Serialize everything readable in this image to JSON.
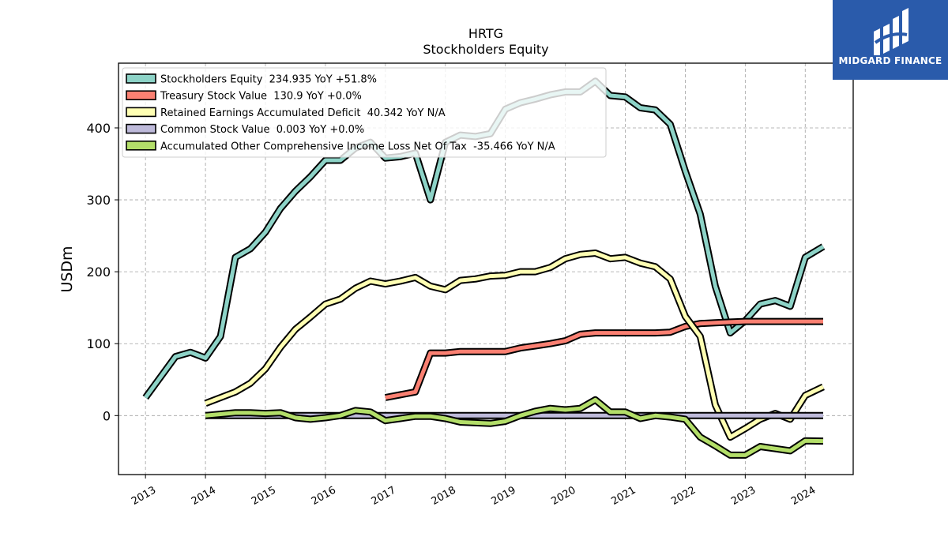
{
  "chart_data": {
    "type": "line",
    "title": "HRTG",
    "subtitle": "Stockholders  Equity",
    "ylabel": "USDm",
    "xlabel": "",
    "xlim": [
      2012.55,
      2024.8
    ],
    "ylim": [
      -82,
      490
    ],
    "yticks": [
      0,
      100,
      200,
      300,
      400
    ],
    "xticks": [
      2013,
      2014,
      2015,
      2016,
      2017,
      2018,
      2019,
      2020,
      2021,
      2022,
      2023,
      2024
    ],
    "grid": true,
    "legend_position": "top-left",
    "series": [
      {
        "name": "Stockholders Equity  234.935 YoY +51.8%",
        "color": "#8dd3c7",
        "points": [
          [
            2013.0,
            25
          ],
          [
            2013.5,
            82
          ],
          [
            2013.75,
            88
          ],
          [
            2014.0,
            80
          ],
          [
            2014.25,
            110
          ],
          [
            2014.5,
            220
          ],
          [
            2014.75,
            232
          ],
          [
            2015.0,
            255
          ],
          [
            2015.25,
            288
          ],
          [
            2015.5,
            312
          ],
          [
            2015.75,
            332
          ],
          [
            2016.0,
            355
          ],
          [
            2016.25,
            355
          ],
          [
            2016.5,
            372
          ],
          [
            2016.75,
            380
          ],
          [
            2017.0,
            358
          ],
          [
            2017.25,
            360
          ],
          [
            2017.5,
            365
          ],
          [
            2017.75,
            300
          ],
          [
            2018.0,
            380
          ],
          [
            2018.25,
            390
          ],
          [
            2018.5,
            388
          ],
          [
            2018.75,
            392
          ],
          [
            2019.0,
            426
          ],
          [
            2019.25,
            435
          ],
          [
            2019.5,
            440
          ],
          [
            2019.75,
            446
          ],
          [
            2020.0,
            450
          ],
          [
            2020.25,
            450
          ],
          [
            2020.5,
            465
          ],
          [
            2020.75,
            445
          ],
          [
            2021.0,
            443
          ],
          [
            2021.25,
            428
          ],
          [
            2021.5,
            425
          ],
          [
            2021.75,
            405
          ],
          [
            2022.0,
            340
          ],
          [
            2022.25,
            280
          ],
          [
            2022.5,
            180
          ],
          [
            2022.75,
            115
          ],
          [
            2023.0,
            132
          ],
          [
            2023.25,
            155
          ],
          [
            2023.5,
            160
          ],
          [
            2023.75,
            152
          ],
          [
            2024.0,
            220
          ],
          [
            2024.3,
            235
          ]
        ]
      },
      {
        "name": "Treasury Stock Value  130.9 YoY +0.0%",
        "color": "#fb8072",
        "points": [
          [
            2017.0,
            25
          ],
          [
            2017.5,
            33
          ],
          [
            2017.75,
            87
          ],
          [
            2018.0,
            87
          ],
          [
            2018.25,
            89
          ],
          [
            2018.5,
            89
          ],
          [
            2018.75,
            89
          ],
          [
            2019.0,
            89
          ],
          [
            2019.25,
            94
          ],
          [
            2019.5,
            97
          ],
          [
            2019.75,
            100
          ],
          [
            2020.0,
            104
          ],
          [
            2020.25,
            113
          ],
          [
            2020.5,
            115
          ],
          [
            2020.75,
            115
          ],
          [
            2021.0,
            115
          ],
          [
            2021.25,
            115
          ],
          [
            2021.5,
            115
          ],
          [
            2021.75,
            116
          ],
          [
            2022.0,
            124
          ],
          [
            2022.25,
            128
          ],
          [
            2022.5,
            129
          ],
          [
            2022.75,
            130
          ],
          [
            2023.0,
            130.9
          ],
          [
            2023.5,
            130.9
          ],
          [
            2024.0,
            130.9
          ],
          [
            2024.3,
            130.9
          ]
        ]
      },
      {
        "name": "Retained Earnings Accumulated Deficit  40.342 YoY N/A",
        "color": "#ffffb3",
        "points": [
          [
            2014.0,
            17
          ],
          [
            2014.5,
            33
          ],
          [
            2014.75,
            45
          ],
          [
            2015.0,
            65
          ],
          [
            2015.25,
            95
          ],
          [
            2015.5,
            120
          ],
          [
            2015.75,
            137
          ],
          [
            2016.0,
            155
          ],
          [
            2016.25,
            162
          ],
          [
            2016.5,
            177
          ],
          [
            2016.75,
            187
          ],
          [
            2017.0,
            183
          ],
          [
            2017.25,
            187
          ],
          [
            2017.5,
            192
          ],
          [
            2017.75,
            180
          ],
          [
            2018.0,
            175
          ],
          [
            2018.25,
            188
          ],
          [
            2018.5,
            190
          ],
          [
            2018.75,
            194
          ],
          [
            2019.0,
            195
          ],
          [
            2019.25,
            200
          ],
          [
            2019.5,
            200
          ],
          [
            2019.75,
            206
          ],
          [
            2020.0,
            218
          ],
          [
            2020.25,
            224
          ],
          [
            2020.5,
            226
          ],
          [
            2020.75,
            218
          ],
          [
            2021.0,
            220
          ],
          [
            2021.25,
            212
          ],
          [
            2021.5,
            207
          ],
          [
            2021.75,
            190
          ],
          [
            2022.0,
            138
          ],
          [
            2022.25,
            110
          ],
          [
            2022.5,
            15
          ],
          [
            2022.75,
            -30
          ],
          [
            2023.0,
            -18
          ],
          [
            2023.25,
            -5
          ],
          [
            2023.5,
            3
          ],
          [
            2023.75,
            -5
          ],
          [
            2024.0,
            28
          ],
          [
            2024.3,
            40
          ]
        ]
      },
      {
        "name": "Common Stock Value  0.003 YoY +0.0%",
        "color": "#bebada",
        "points": [
          [
            2014.0,
            0
          ],
          [
            2015.0,
            0
          ],
          [
            2016.0,
            0
          ],
          [
            2017.0,
            0
          ],
          [
            2018.0,
            0
          ],
          [
            2019.0,
            0
          ],
          [
            2020.0,
            0
          ],
          [
            2021.0,
            0
          ],
          [
            2022.0,
            0
          ],
          [
            2023.0,
            0
          ],
          [
            2024.0,
            0
          ],
          [
            2024.3,
            0
          ]
        ]
      },
      {
        "name": "Accumulated Other Comprehensive Income Loss Net Of Tax  -35.466 YoY N/A",
        "color": "#b3de69",
        "points": [
          [
            2014.0,
            0
          ],
          [
            2014.25,
            2
          ],
          [
            2014.5,
            4
          ],
          [
            2014.75,
            4
          ],
          [
            2015.0,
            3
          ],
          [
            2015.25,
            4
          ],
          [
            2015.5,
            -3
          ],
          [
            2015.75,
            -5
          ],
          [
            2016.0,
            -3
          ],
          [
            2016.25,
            0
          ],
          [
            2016.5,
            7
          ],
          [
            2016.75,
            5
          ],
          [
            2017.0,
            -7
          ],
          [
            2017.25,
            -4
          ],
          [
            2017.5,
            -1
          ],
          [
            2017.75,
            -1
          ],
          [
            2018.0,
            -4
          ],
          [
            2018.25,
            -9
          ],
          [
            2018.5,
            -10
          ],
          [
            2018.75,
            -11
          ],
          [
            2019.0,
            -8
          ],
          [
            2019.25,
            0
          ],
          [
            2019.5,
            6
          ],
          [
            2019.75,
            10
          ],
          [
            2020.0,
            8
          ],
          [
            2020.25,
            10
          ],
          [
            2020.5,
            22
          ],
          [
            2020.75,
            5
          ],
          [
            2021.0,
            5
          ],
          [
            2021.25,
            -4
          ],
          [
            2021.5,
            0
          ],
          [
            2021.75,
            -2
          ],
          [
            2022.0,
            -5
          ],
          [
            2022.25,
            -30
          ],
          [
            2022.5,
            -42
          ],
          [
            2022.75,
            -55
          ],
          [
            2023.0,
            -55
          ],
          [
            2023.25,
            -43
          ],
          [
            2023.5,
            -46
          ],
          [
            2023.75,
            -49
          ],
          [
            2024.0,
            -35
          ],
          [
            2024.3,
            -35.466
          ]
        ]
      }
    ]
  },
  "logo": {
    "brand": "MIDGARD FINANCE",
    "icon": "midgard-finance-logo-icon",
    "background": "#2a5bab"
  }
}
